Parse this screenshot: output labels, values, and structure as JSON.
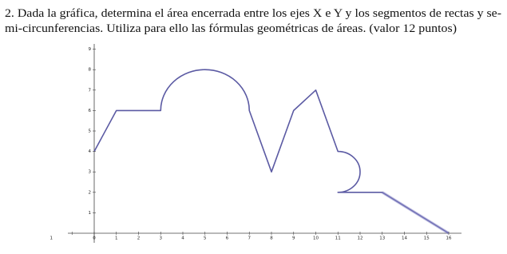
{
  "question": {
    "line1": "2. Dada la gráfica, determina el área encerrada entre los ejes X e Y y los segmentos de rectas y se-",
    "line2": "mi-circunferencias. Utiliza para ello las fórmulas geométricas de áreas. (valor 12 puntos)"
  },
  "graph": {
    "x_tick_labels": [
      "1",
      "0",
      "1",
      "2",
      "3",
      "4",
      "5",
      "6",
      "7",
      "8",
      "9",
      "10",
      "11",
      "12",
      "13",
      "14",
      "15",
      "16"
    ],
    "y_tick_labels": [
      "1",
      "2",
      "3",
      "4",
      "5",
      "6",
      "7",
      "8",
      "9"
    ]
  }
}
